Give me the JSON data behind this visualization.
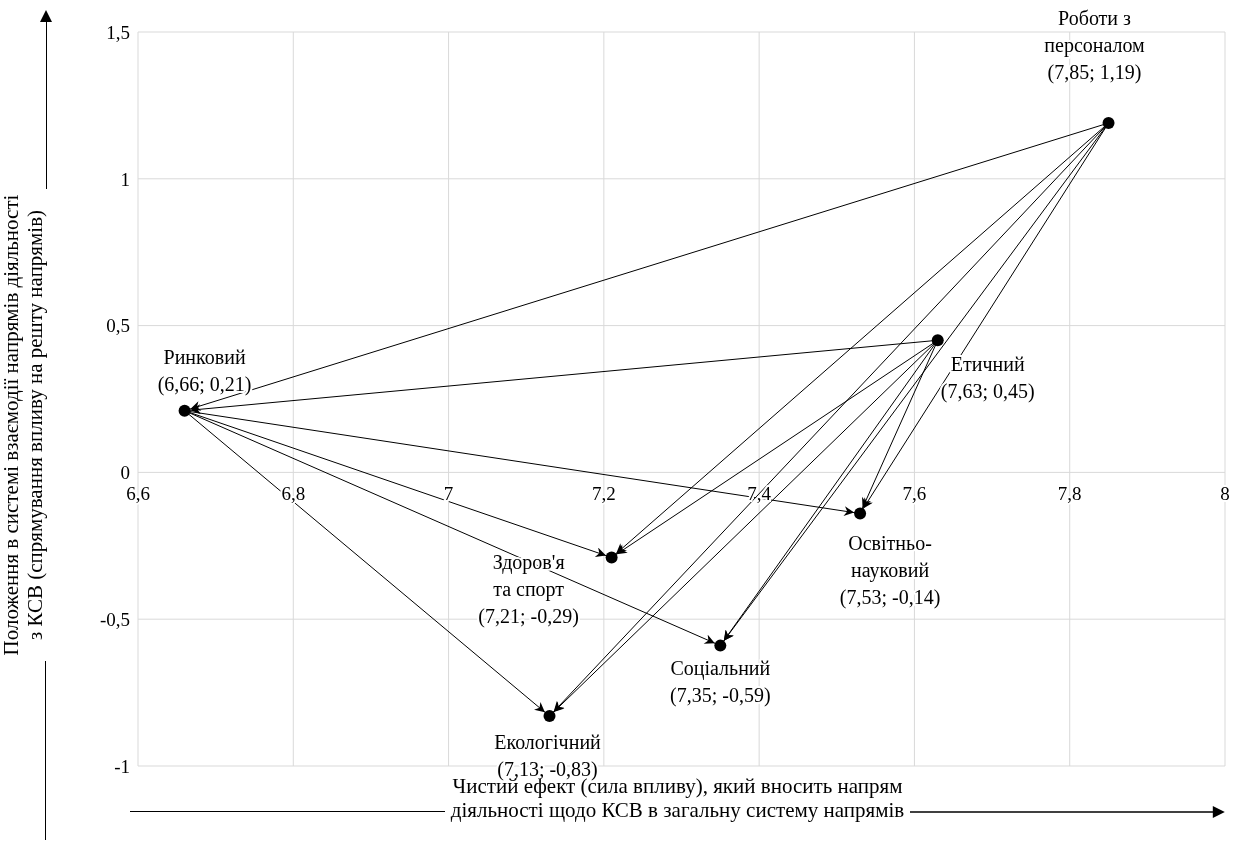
{
  "chart_data": {
    "type": "scatter",
    "xlabel": "Чистий ефект (сила впливу), який вносить напрям\nдіяльності щодо КСВ в загальну систему напрямів",
    "ylabel": "Положення в системі взаємодії напрямів діяльності\nз КСВ (спрямування впливу на решту напрямів)",
    "xlim": [
      6.6,
      8
    ],
    "xticks": [
      {
        "value": 6.6,
        "label": "6,6"
      },
      {
        "value": 6.8,
        "label": "6,8"
      },
      7,
      {
        "value": 7.2,
        "label": "7,2"
      },
      {
        "value": 7.4,
        "label": "7,4"
      },
      {
        "value": 7.6,
        "label": "7,6"
      },
      {
        "value": 7.8,
        "label": "7,8"
      },
      8
    ],
    "ylim": [
      -1,
      1.5
    ],
    "yticks": [
      -1,
      {
        "value": -0.5,
        "label": "-0,5"
      },
      0,
      {
        "value": 0.5,
        "label": "0,5"
      },
      1,
      {
        "value": 1.5,
        "label": "1,5"
      }
    ],
    "grid": true,
    "series": [
      {
        "type": "scatter",
        "marker": "circle",
        "color": "#000000",
        "x": [
          7.85,
          6.66,
          7.63,
          7.53,
          7.21,
          7.35,
          7.13
        ],
        "values": [
          1.19,
          0.21,
          0.45,
          -0.14,
          -0.29,
          -0.59,
          -0.83
        ]
      },
      {
        "type": "line",
        "marker": "none",
        "color": "#000000",
        "x": [
          7.85,
          6.66
        ],
        "values": [
          1.19,
          0.21
        ]
      },
      {
        "type": "line",
        "marker": "none",
        "color": "#000000",
        "x": [
          7.63,
          6.66
        ],
        "values": [
          0.45,
          0.21
        ]
      },
      {
        "type": "line",
        "marker": "none",
        "color": "#000000",
        "x": [
          6.66,
          7.53
        ],
        "values": [
          0.21,
          -0.14
        ]
      },
      {
        "type": "line",
        "marker": "none",
        "color": "#000000",
        "x": [
          6.66,
          7.21
        ],
        "values": [
          0.21,
          -0.29
        ]
      },
      {
        "type": "line",
        "marker": "none",
        "color": "#000000",
        "x": [
          6.66,
          7.35
        ],
        "values": [
          0.21,
          -0.59
        ]
      },
      {
        "type": "line",
        "marker": "none",
        "color": "#000000",
        "x": [
          6.66,
          7.13
        ],
        "values": [
          0.21,
          -0.83
        ]
      },
      {
        "type": "line",
        "marker": "none",
        "color": "#000000",
        "x": [
          7.85,
          7.21
        ],
        "values": [
          1.19,
          -0.29
        ]
      },
      {
        "type": "line",
        "marker": "none",
        "color": "#000000",
        "x": [
          7.85,
          7.13
        ],
        "values": [
          1.19,
          -0.83
        ]
      },
      {
        "type": "line",
        "marker": "none",
        "color": "#000000",
        "x": [
          7.85,
          7.35
        ],
        "values": [
          1.19,
          -0.59
        ]
      },
      {
        "type": "line",
        "marker": "none",
        "color": "#000000",
        "x": [
          7.85,
          7.53
        ],
        "values": [
          1.19,
          -0.14
        ]
      },
      {
        "type": "line",
        "marker": "none",
        "color": "#000000",
        "x": [
          7.63,
          7.21
        ],
        "values": [
          0.45,
          -0.29
        ]
      },
      {
        "type": "line",
        "marker": "none",
        "color": "#000000",
        "x": [
          7.63,
          7.13
        ],
        "values": [
          0.45,
          -0.83
        ]
      },
      {
        "type": "line",
        "marker": "none",
        "color": "#000000",
        "x": [
          7.63,
          7.35
        ],
        "values": [
          0.45,
          -0.59
        ]
      },
      {
        "type": "line",
        "marker": "none",
        "color": "#000000",
        "x": [
          7.63,
          7.53
        ],
        "values": [
          0.45,
          -0.14
        ]
      }
    ],
    "annotations": [
      {
        "text": "Роботи з\nперсоналом\n(7,85; 1,19)",
        "x": 7.85,
        "y": 1.19
      },
      {
        "text": "Ринковий\n(6,66; 0,21)",
        "x": 6.66,
        "y": 0.21
      },
      {
        "text": "Етичний\n(7,63; 0,45)",
        "x": 7.63,
        "y": 0.45
      },
      {
        "text": "Освітньо-\nнауковий\n(7,53; -0,14)",
        "x": 7.53,
        "y": -0.14
      },
      {
        "text": "Здоров'я\nта спорт\n(7,21; -0,29)",
        "x": 7.21,
        "y": -0.29
      },
      {
        "text": "Соціальний\n(7,35; -0,59)",
        "x": 7.35,
        "y": -0.59
      },
      {
        "text": "Екологічний\n(7,13; -0,83)",
        "x": 7.13,
        "y": -0.83
      }
    ]
  }
}
